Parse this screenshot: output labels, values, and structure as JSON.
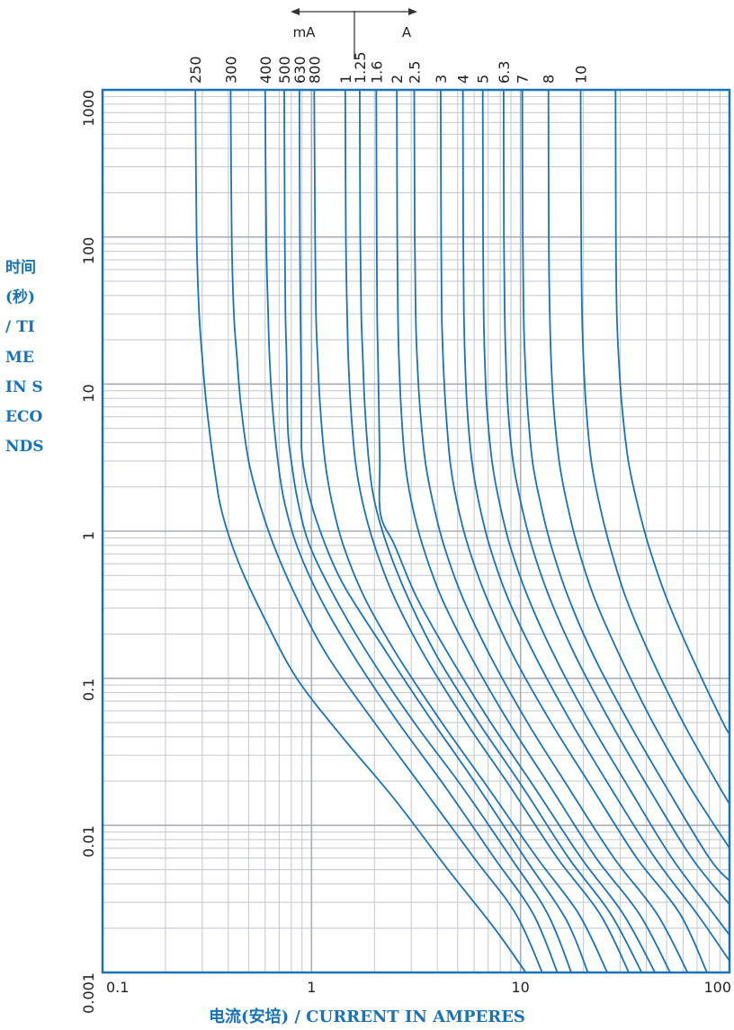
{
  "chart_data": {
    "type": "line",
    "x_scale": "log",
    "y_scale": "log",
    "xlabel": "电流(安培) / CURRENT IN AMPERES",
    "ylabel": "时间(秒) / TIME IN SECONDS",
    "xlim": [
      0.1,
      100
    ],
    "ylim": [
      0.001,
      1000
    ],
    "x_ticks": [
      "0.1",
      "1",
      "10",
      "100"
    ],
    "y_ticks": [
      "1000",
      "100",
      "10",
      "1",
      "0.1",
      "0.01",
      "0.001"
    ],
    "unit_marker": {
      "left": "mA",
      "right": "A"
    },
    "grid": true,
    "colors": {
      "curve": "#1a72b8",
      "grid": "#c8cbd1",
      "frame": "#1a72b8"
    },
    "series": [
      {
        "name": "250",
        "points": [
          [
            0.278,
            1000
          ],
          [
            0.282,
            100
          ],
          [
            0.29,
            30
          ],
          [
            0.3,
            15
          ],
          [
            0.315,
            7
          ],
          [
            0.345,
            2.5
          ],
          [
            0.375,
            1.3
          ],
          [
            0.45,
            0.6
          ],
          [
            0.6,
            0.25
          ],
          [
            0.85,
            0.1
          ],
          [
            1.4,
            0.04
          ],
          [
            2.5,
            0.015
          ],
          [
            4.5,
            0.005
          ],
          [
            7.5,
            0.002
          ],
          [
            10.6,
            0.001
          ]
        ]
      },
      {
        "name": "300",
        "points": [
          [
            0.41,
            1000
          ],
          [
            0.415,
            100
          ],
          [
            0.425,
            30
          ],
          [
            0.44,
            15
          ],
          [
            0.46,
            7
          ],
          [
            0.5,
            3
          ],
          [
            0.56,
            1.6
          ],
          [
            0.66,
            0.8
          ],
          [
            0.85,
            0.35
          ],
          [
            1.2,
            0.14
          ],
          [
            2,
            0.05
          ],
          [
            3.4,
            0.018
          ],
          [
            6,
            0.006
          ],
          [
            9.5,
            0.0025
          ],
          [
            12.7,
            0.001
          ]
        ]
      },
      {
        "name": "400",
        "points": [
          [
            0.6,
            1000
          ],
          [
            0.607,
            100
          ],
          [
            0.62,
            30
          ],
          [
            0.63,
            15
          ],
          [
            0.65,
            7
          ],
          [
            0.69,
            3
          ],
          [
            0.74,
            1.6
          ],
          [
            0.85,
            0.8
          ],
          [
            1.1,
            0.35
          ],
          [
            1.6,
            0.14
          ],
          [
            2.6,
            0.05
          ],
          [
            4.4,
            0.018
          ],
          [
            7.5,
            0.006
          ],
          [
            11.5,
            0.0025
          ],
          [
            15,
            0.001
          ]
        ]
      },
      {
        "name": "500",
        "points": [
          [
            0.74,
            1000
          ],
          [
            0.745,
            100
          ],
          [
            0.75,
            30
          ],
          [
            0.76,
            15
          ],
          [
            0.77,
            5
          ],
          [
            0.8,
            3
          ],
          [
            0.86,
            1.6
          ],
          [
            0.98,
            0.8
          ],
          [
            1.3,
            0.35
          ],
          [
            1.9,
            0.14
          ],
          [
            3.1,
            0.05
          ],
          [
            5.3,
            0.018
          ],
          [
            9,
            0.006
          ],
          [
            13.5,
            0.0025
          ],
          [
            17.5,
            0.001
          ]
        ]
      },
      {
        "name": "630",
        "points": [
          [
            0.875,
            1000
          ],
          [
            0.88,
            100
          ],
          [
            0.885,
            30
          ],
          [
            0.89,
            15
          ],
          [
            0.895,
            5
          ],
          [
            0.9,
            3.3
          ],
          [
            0.96,
            1.9
          ],
          [
            1.1,
            1
          ],
          [
            1.4,
            0.45
          ],
          [
            2.1,
            0.18
          ],
          [
            3.5,
            0.06
          ],
          [
            6,
            0.02
          ],
          [
            10.5,
            0.006
          ],
          [
            16.5,
            0.0023
          ],
          [
            21,
            0.001
          ]
        ]
      },
      {
        "name": "800",
        "points": [
          [
            1.03,
            1000
          ],
          [
            1.04,
            100
          ],
          [
            1.05,
            30
          ],
          [
            1.07,
            15
          ],
          [
            1.1,
            7
          ],
          [
            1.16,
            3
          ],
          [
            1.25,
            1.6
          ],
          [
            1.42,
            0.8
          ],
          [
            1.8,
            0.35
          ],
          [
            2.6,
            0.14
          ],
          [
            4.2,
            0.05
          ],
          [
            7,
            0.018
          ],
          [
            12,
            0.006
          ],
          [
            19,
            0.0025
          ],
          [
            26,
            0.001
          ]
        ]
      },
      {
        "name": "1",
        "points": [
          [
            1.45,
            1000
          ],
          [
            1.46,
            100
          ],
          [
            1.48,
            30
          ],
          [
            1.5,
            15
          ],
          [
            1.54,
            7
          ],
          [
            1.62,
            3
          ],
          [
            1.75,
            1.6
          ],
          [
            2,
            0.8
          ],
          [
            2.5,
            0.35
          ],
          [
            3.5,
            0.14
          ],
          [
            5.5,
            0.05
          ],
          [
            9,
            0.018
          ],
          [
            15,
            0.006
          ],
          [
            24,
            0.0025
          ],
          [
            33,
            0.001
          ]
        ]
      },
      {
        "name": "1.25",
        "points": [
          [
            1.7,
            1000
          ],
          [
            1.71,
            100
          ],
          [
            1.73,
            30
          ],
          [
            1.76,
            15
          ],
          [
            1.8,
            7
          ],
          [
            1.88,
            3
          ],
          [
            2,
            1.6
          ],
          [
            2.3,
            0.8
          ],
          [
            2.9,
            0.35
          ],
          [
            4,
            0.14
          ],
          [
            6.3,
            0.05
          ],
          [
            10.3,
            0.018
          ],
          [
            17,
            0.006
          ],
          [
            27,
            0.0025
          ],
          [
            38,
            0.001
          ]
        ]
      },
      {
        "name": "1.6",
        "points": [
          [
            2.04,
            1000
          ],
          [
            2.05,
            100
          ],
          [
            2.06,
            30
          ],
          [
            2.08,
            15
          ],
          [
            2.1,
            7
          ],
          [
            2.12,
            3
          ],
          [
            2.14,
            1.3
          ],
          [
            2.5,
            0.8
          ],
          [
            3.2,
            0.35
          ],
          [
            4.6,
            0.14
          ],
          [
            7.2,
            0.05
          ],
          [
            11.7,
            0.018
          ],
          [
            19.5,
            0.006
          ],
          [
            31,
            0.0025
          ],
          [
            44,
            0.001
          ]
        ]
      },
      {
        "name": "2",
        "points": [
          [
            2.56,
            1000
          ],
          [
            2.57,
            100
          ],
          [
            2.59,
            30
          ],
          [
            2.62,
            15
          ],
          [
            2.68,
            7
          ],
          [
            2.8,
            3
          ],
          [
            3,
            1.6
          ],
          [
            3.4,
            0.8
          ],
          [
            4.2,
            0.35
          ],
          [
            5.8,
            0.14
          ],
          [
            8.8,
            0.05
          ],
          [
            14,
            0.018
          ],
          [
            23,
            0.006
          ],
          [
            37,
            0.0025
          ],
          [
            52,
            0.001
          ]
        ]
      },
      {
        "name": "2.5",
        "points": [
          [
            3.1,
            1000
          ],
          [
            3.12,
            100
          ],
          [
            3.15,
            30
          ],
          [
            3.2,
            15
          ],
          [
            3.3,
            7
          ],
          [
            3.5,
            3
          ],
          [
            3.8,
            1.6
          ],
          [
            4.3,
            0.8
          ],
          [
            5.3,
            0.35
          ],
          [
            7.2,
            0.14
          ],
          [
            10.8,
            0.05
          ],
          [
            17,
            0.018
          ],
          [
            28,
            0.006
          ],
          [
            45,
            0.0025
          ],
          [
            63,
            0.001
          ]
        ]
      },
      {
        "name": "3",
        "points": [
          [
            4.15,
            1000
          ],
          [
            4.17,
            100
          ],
          [
            4.2,
            30
          ],
          [
            4.26,
            15
          ],
          [
            4.38,
            7
          ],
          [
            4.6,
            3
          ],
          [
            4.95,
            1.6
          ],
          [
            5.6,
            0.8
          ],
          [
            6.9,
            0.35
          ],
          [
            9.3,
            0.14
          ],
          [
            14,
            0.05
          ],
          [
            22,
            0.018
          ],
          [
            36,
            0.006
          ],
          [
            58,
            0.0025
          ],
          [
            78,
            0.001
          ]
        ]
      },
      {
        "name": "4",
        "points": [
          [
            5.3,
            1000
          ],
          [
            5.32,
            100
          ],
          [
            5.36,
            30
          ],
          [
            5.42,
            15
          ],
          [
            5.55,
            7
          ],
          [
            5.85,
            3
          ],
          [
            6.3,
            1.6
          ],
          [
            7.1,
            0.8
          ],
          [
            8.7,
            0.35
          ],
          [
            11.8,
            0.14
          ],
          [
            17.5,
            0.05
          ],
          [
            27,
            0.018
          ],
          [
            44,
            0.006
          ],
          [
            70,
            0.0025
          ],
          [
            100,
            0.0012
          ]
        ]
      },
      {
        "name": "5",
        "points": [
          [
            6.6,
            1000
          ],
          [
            6.62,
            100
          ],
          [
            6.66,
            30
          ],
          [
            6.74,
            15
          ],
          [
            6.9,
            7
          ],
          [
            7.3,
            3
          ],
          [
            7.9,
            1.6
          ],
          [
            8.9,
            0.8
          ],
          [
            10.9,
            0.35
          ],
          [
            14.6,
            0.14
          ],
          [
            21.5,
            0.05
          ],
          [
            33,
            0.018
          ],
          [
            53,
            0.006
          ],
          [
            84,
            0.0025
          ],
          [
            100,
            0.0018
          ]
        ]
      },
      {
        "name": "6.3",
        "points": [
          [
            8.3,
            1000
          ],
          [
            8.33,
            100
          ],
          [
            8.4,
            30
          ],
          [
            8.5,
            15
          ],
          [
            8.7,
            7
          ],
          [
            9.2,
            3
          ],
          [
            10,
            1.6
          ],
          [
            11.3,
            0.8
          ],
          [
            13.8,
            0.35
          ],
          [
            18.4,
            0.14
          ],
          [
            27,
            0.05
          ],
          [
            41,
            0.018
          ],
          [
            66,
            0.006
          ],
          [
            100,
            0.0029
          ]
        ]
      },
      {
        "name": "7",
        "points": [
          [
            10.2,
            1000
          ],
          [
            10.25,
            100
          ],
          [
            10.35,
            30
          ],
          [
            10.5,
            15
          ],
          [
            10.8,
            7
          ],
          [
            11.4,
            3
          ],
          [
            12.4,
            1.6
          ],
          [
            14,
            0.8
          ],
          [
            17,
            0.35
          ],
          [
            22.5,
            0.14
          ],
          [
            33,
            0.05
          ],
          [
            50,
            0.018
          ],
          [
            80,
            0.006
          ],
          [
            100,
            0.0042
          ]
        ]
      },
      {
        "name": "8",
        "points": [
          [
            13.6,
            1000
          ],
          [
            13.65,
            100
          ],
          [
            13.8,
            30
          ],
          [
            14,
            15
          ],
          [
            14.4,
            7
          ],
          [
            15.3,
            3
          ],
          [
            16.6,
            1.6
          ],
          [
            18.7,
            0.8
          ],
          [
            22.6,
            0.35
          ],
          [
            30,
            0.14
          ],
          [
            43,
            0.05
          ],
          [
            65,
            0.018
          ],
          [
            100,
            0.007
          ]
        ]
      },
      {
        "name": "10",
        "points": [
          [
            19.4,
            1000
          ],
          [
            19.5,
            100
          ],
          [
            19.7,
            30
          ],
          [
            20,
            15
          ],
          [
            20.6,
            7
          ],
          [
            21.8,
            3
          ],
          [
            23.7,
            1.6
          ],
          [
            26.7,
            0.8
          ],
          [
            32,
            0.35
          ],
          [
            42,
            0.14
          ],
          [
            60,
            0.05
          ],
          [
            90,
            0.018
          ],
          [
            100,
            0.014
          ]
        ]
      },
      {
        "name": "",
        "points": [
          [
            28.5,
            1000
          ],
          [
            28.6,
            100
          ],
          [
            28.9,
            30
          ],
          [
            29.5,
            15
          ],
          [
            30.6,
            7
          ],
          [
            32.8,
            3
          ],
          [
            36,
            1.6
          ],
          [
            41,
            0.8
          ],
          [
            50,
            0.35
          ],
          [
            66,
            0.14
          ],
          [
            93,
            0.05
          ],
          [
            100,
            0.042
          ]
        ]
      }
    ],
    "ratings": [
      "250",
      "300",
      "400",
      "500",
      "630",
      "800",
      "1",
      "1.25",
      "1.6",
      "2",
      "2.5",
      "3",
      "4",
      "5",
      "6.3",
      "7",
      "8",
      "10"
    ]
  }
}
